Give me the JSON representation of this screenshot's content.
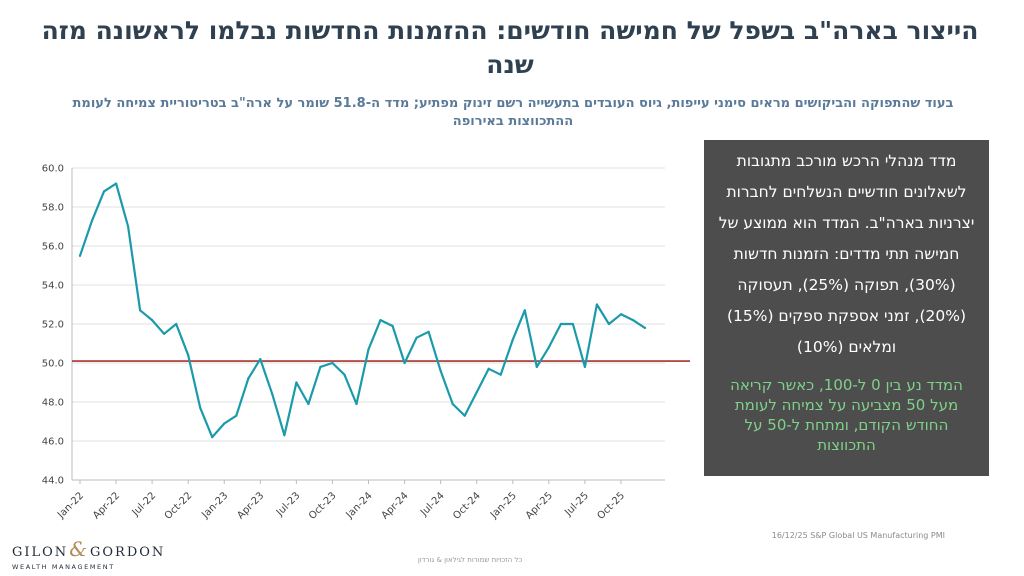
{
  "title": "הייצור בארה\"ב בשפל של חמישה חודשים: ההזמנות החדשות נבלמו לראשונה מזה שנה",
  "subtitle": "בעוד שהתפוקה והביקושים מראים סימני עייפות, גיוס העובדים בתעשייה רשם זינוק מפתיע; מדד ה-51.8 שומר על ארה\"ב בטריטוריית צמיחה לעומת ההתכווצות באירופה",
  "info_box": {
    "main_text": "מדד מנהלי הרכש מורכב מתגובות לשאלונים חודשיים הנשלחים לחברות יצרניות בארה\"ב. המדד הוא ממוצע של חמישה תתי מדדים: הזמנות חדשות (30%), תפוקה (25%), תעסוקה (20%), זמני אספקת ספקים (15%) ומלאים (10%)",
    "note_text": "המדד נע בין 0 ל-100, כאשר קריאה מעל 50 מצביעה על צמיחה לעומת החודש הקודם, ומתחת ל-50 על התכווצות",
    "note_color": "#7fd18a"
  },
  "source": "16/12/25 S&P Global US Manufacturing PMI",
  "footer": "כל הזכויות שמורות לגילאון & גורדון",
  "logo": {
    "word1": "GILON",
    "amp": "&",
    "word2": "GORDON",
    "tagline": "WEALTH MANAGEMENT"
  },
  "colors": {
    "line": "#1b9aaa",
    "reference_line": "#a8322d",
    "grid": "#e0e0e0",
    "title": "#2f4150",
    "subtitle": "#5b7a99",
    "box_bg": "#4d4d4d"
  },
  "chart_data": {
    "type": "line",
    "ylim": [
      44,
      60
    ],
    "yticks": [
      "44.0",
      "46.0",
      "48.0",
      "50.0",
      "52.0",
      "54.0",
      "56.0",
      "58.0",
      "60.0"
    ],
    "reference_line": 50.1,
    "x_tick_labels": [
      "Jan-22",
      "Apr-22",
      "Jul-22",
      "Oct-22",
      "Jan-23",
      "Apr-23",
      "Jul-23",
      "Oct-23",
      "Jan-24",
      "Apr-24",
      "Jul-24",
      "Oct-24",
      "Jan-25",
      "Apr-25",
      "Jul-25",
      "Oct-25"
    ],
    "months": [
      "Jan-22",
      "Feb-22",
      "Mar-22",
      "Apr-22",
      "May-22",
      "Jun-22",
      "Jul-22",
      "Aug-22",
      "Sep-22",
      "Oct-22",
      "Nov-22",
      "Dec-22",
      "Jan-23",
      "Feb-23",
      "Mar-23",
      "Apr-23",
      "May-23",
      "Jun-23",
      "Jul-23",
      "Aug-23",
      "Sep-23",
      "Oct-23",
      "Nov-23",
      "Dec-23",
      "Jan-24",
      "Feb-24",
      "Mar-24",
      "Apr-24",
      "May-24",
      "Jun-24",
      "Jul-24",
      "Aug-24",
      "Sep-24",
      "Oct-24",
      "Nov-24",
      "Dec-24",
      "Jan-25",
      "Feb-25",
      "Mar-25",
      "Apr-25",
      "May-25",
      "Jun-25",
      "Jul-25",
      "Aug-25",
      "Sep-25",
      "Oct-25",
      "Nov-25",
      "Dec-25"
    ],
    "values": [
      55.5,
      57.3,
      58.8,
      59.2,
      57.0,
      52.7,
      52.2,
      51.5,
      52.0,
      50.4,
      47.7,
      46.2,
      46.9,
      47.3,
      49.2,
      50.2,
      48.4,
      46.3,
      49.0,
      47.9,
      49.8,
      50.0,
      49.4,
      47.9,
      50.7,
      52.2,
      51.9,
      50.0,
      51.3,
      51.6,
      49.6,
      47.9,
      47.3,
      48.5,
      49.7,
      49.4,
      51.2,
      52.7,
      49.8,
      50.8,
      52.0,
      52.0,
      49.8,
      53.0,
      52.0,
      52.5,
      52.2,
      51.8
    ]
  }
}
